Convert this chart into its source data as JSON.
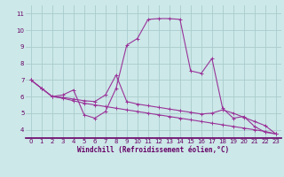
{
  "background_color": "#cce8e8",
  "grid_color": "#aacccc",
  "line_color": "#993399",
  "xlabel": "Windchill (Refroidissement éolien,°C)",
  "xlabel_color": "#660066",
  "tick_color": "#660066",
  "xlim": [
    -0.5,
    23.5
  ],
  "ylim": [
    3.5,
    11.5
  ],
  "yticks": [
    4,
    5,
    6,
    7,
    8,
    9,
    10,
    11
  ],
  "xticks": [
    0,
    1,
    2,
    3,
    4,
    5,
    6,
    7,
    8,
    9,
    10,
    11,
    12,
    13,
    14,
    15,
    16,
    17,
    18,
    19,
    20,
    21,
    22,
    23
  ],
  "line1_x": [
    0,
    1,
    2,
    3,
    4,
    5,
    6,
    7,
    8,
    9,
    10,
    11,
    12,
    13,
    14,
    15,
    16,
    17,
    18,
    19,
    20,
    21,
    22,
    23
  ],
  "line1_y": [
    7.0,
    6.5,
    6.0,
    6.1,
    6.4,
    4.9,
    4.7,
    5.1,
    6.5,
    9.1,
    9.5,
    10.65,
    10.7,
    10.7,
    10.65,
    7.55,
    7.4,
    8.3,
    5.3,
    4.7,
    4.8,
    4.2,
    3.85,
    3.75
  ],
  "line2_x": [
    0,
    1,
    2,
    3,
    4,
    5,
    6,
    7,
    8,
    9,
    10,
    11,
    12,
    13,
    14,
    15,
    16,
    17,
    18,
    19,
    20,
    21,
    22,
    23
  ],
  "line2_y": [
    7.0,
    6.5,
    6.0,
    5.95,
    5.85,
    5.75,
    5.7,
    6.1,
    7.3,
    5.7,
    5.55,
    5.45,
    5.35,
    5.25,
    5.15,
    5.05,
    4.95,
    5.0,
    5.2,
    5.0,
    4.75,
    4.5,
    4.25,
    3.75
  ],
  "line3_x": [
    0,
    1,
    2,
    3,
    4,
    5,
    6,
    7,
    8,
    9,
    10,
    11,
    12,
    13,
    14,
    15,
    16,
    17,
    18,
    19,
    20,
    21,
    22,
    23
  ],
  "line3_y": [
    7.0,
    6.5,
    6.0,
    5.9,
    5.75,
    5.6,
    5.5,
    5.4,
    5.3,
    5.2,
    5.1,
    5.0,
    4.9,
    4.8,
    4.7,
    4.6,
    4.5,
    4.4,
    4.3,
    4.2,
    4.1,
    4.0,
    3.9,
    3.75
  ]
}
